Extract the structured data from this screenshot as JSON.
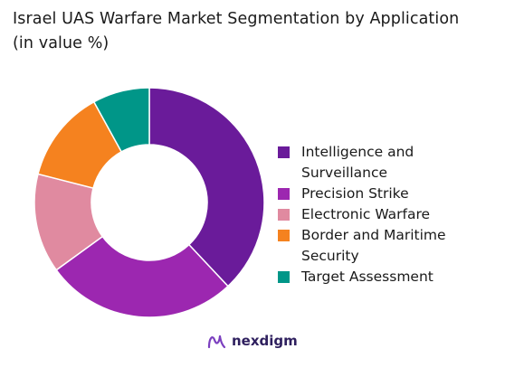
{
  "chart_data": {
    "type": "pie",
    "title_lines": [
      "Israel UAS Warfare Market Segmentation by Application",
      "(in value %)"
    ],
    "categories": [
      "Intelligence and Surveillance",
      "Precision Strike",
      "Electronic Warfare",
      "Border and Maritime Security",
      "Target Assessment"
    ],
    "values": [
      38,
      27,
      14,
      13,
      8
    ],
    "colors": [
      "#6a1b9a",
      "#9c27b0",
      "#e08aa0",
      "#f5821f",
      "#009688"
    ],
    "donut": true,
    "legend_position": "right"
  },
  "brand": {
    "name": "nexdigm",
    "logo_icon": "nexdigm-logo-icon"
  }
}
